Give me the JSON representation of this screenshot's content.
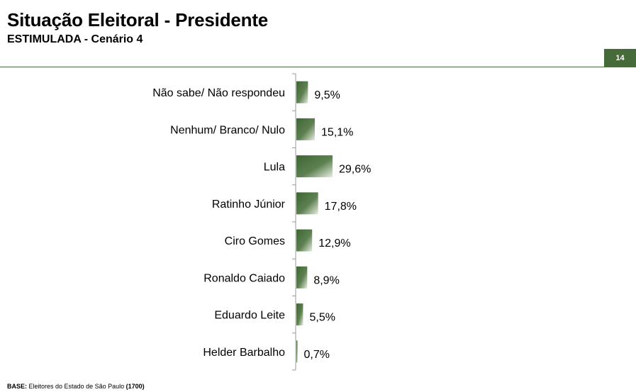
{
  "header": {
    "title": "Situação Eleitoral - Presidente",
    "subtitle": "ESTIMULADA - Cenário 4",
    "page_number": "14"
  },
  "footer": {
    "base_label": "BASE:",
    "base_text": " Eleitores do Estado de São Paulo ",
    "base_count": "(1700)"
  },
  "colors": {
    "bar_dark": "#3f6535",
    "bar_light": "#e8efe3",
    "axis": "#999999",
    "rule": "#4a6b3e",
    "badge": "#466a3a"
  },
  "chart_data": {
    "type": "bar",
    "orientation": "horizontal",
    "categories": [
      "Não sabe/ Não respondeu",
      "Nenhum/ Branco/ Nulo",
      "Lula",
      "Ratinho Júnior",
      "Ciro Gomes",
      "Ronaldo Caiado",
      "Eduardo Leite",
      "Helder Barbalho"
    ],
    "values": [
      9.5,
      15.1,
      29.6,
      17.8,
      12.9,
      8.9,
      5.5,
      0.7
    ],
    "value_labels": [
      "9,5%",
      "15,1%",
      "29,6%",
      "17,8%",
      "12,9%",
      "8,9%",
      "5,5%",
      "0,7%"
    ],
    "title": "",
    "xlabel": "",
    "ylabel": "",
    "xlim": [
      0,
      30
    ],
    "grid": false
  }
}
